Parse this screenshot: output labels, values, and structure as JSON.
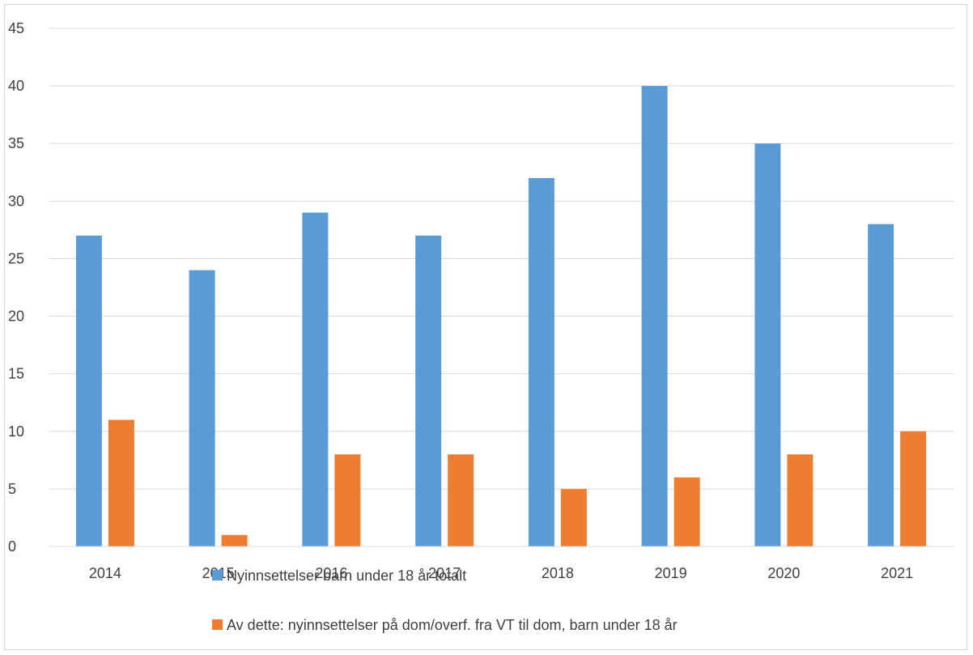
{
  "chart_data": {
    "type": "bar",
    "title": "",
    "xlabel": "",
    "ylabel": "",
    "categories": [
      "2014",
      "2015",
      "2016",
      "2017",
      "2018",
      "2019",
      "2020",
      "2021"
    ],
    "ylim": [
      0,
      45
    ],
    "yticks": [
      "0",
      "5",
      "10",
      "15",
      "20",
      "25",
      "30",
      "35",
      "40",
      "45"
    ],
    "grid": true,
    "legend_position": "bottom",
    "series": [
      {
        "name": "Nyinnsettelser barn under 18 år totalt",
        "color": "#5b9bd5",
        "values": [
          27,
          24,
          29,
          27,
          32,
          40,
          35,
          28
        ]
      },
      {
        "name": "Av dette: nyinnsettelser på dom/overf. fra VT til dom, barn under 18 år",
        "color": "#ed7d31",
        "values": [
          11,
          1,
          8,
          8,
          5,
          6,
          8,
          10
        ]
      }
    ]
  }
}
